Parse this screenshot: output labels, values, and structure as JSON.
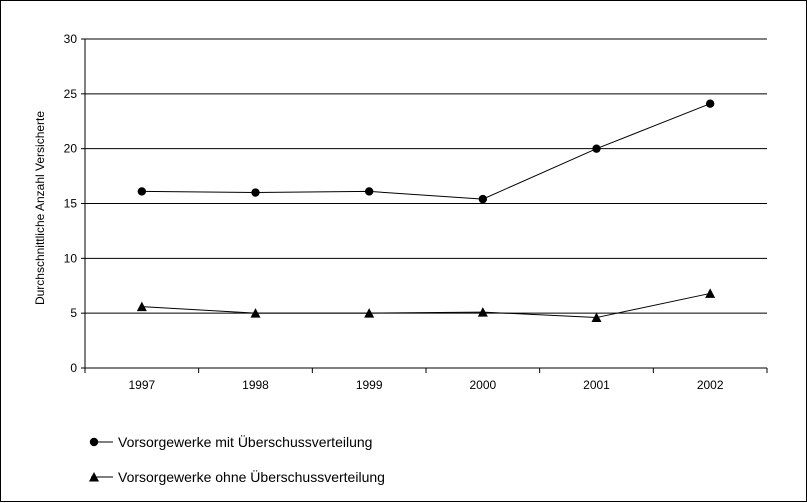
{
  "chart_data": {
    "type": "line",
    "title": "",
    "xlabel": "",
    "ylabel": "Durchschnittliche Anzahl Versicherte",
    "categories": [
      "1997",
      "1998",
      "1999",
      "2000",
      "2001",
      "2002"
    ],
    "ylim": [
      0,
      30
    ],
    "yticks": [
      0,
      5,
      10,
      15,
      20,
      25,
      30
    ],
    "grid": "horizontal",
    "legend_position": "bottom-left",
    "series": [
      {
        "name": "Vorsorgewerke mit Überschussverteilung",
        "marker": "circle",
        "color": "#000000",
        "values": [
          16.1,
          16.0,
          16.1,
          15.4,
          20.0,
          24.1
        ]
      },
      {
        "name": "Vorsorgewerke ohne Überschussverteilung",
        "marker": "triangle",
        "color": "#000000",
        "values": [
          5.6,
          5.0,
          5.0,
          5.1,
          4.6,
          6.8
        ]
      }
    ]
  }
}
